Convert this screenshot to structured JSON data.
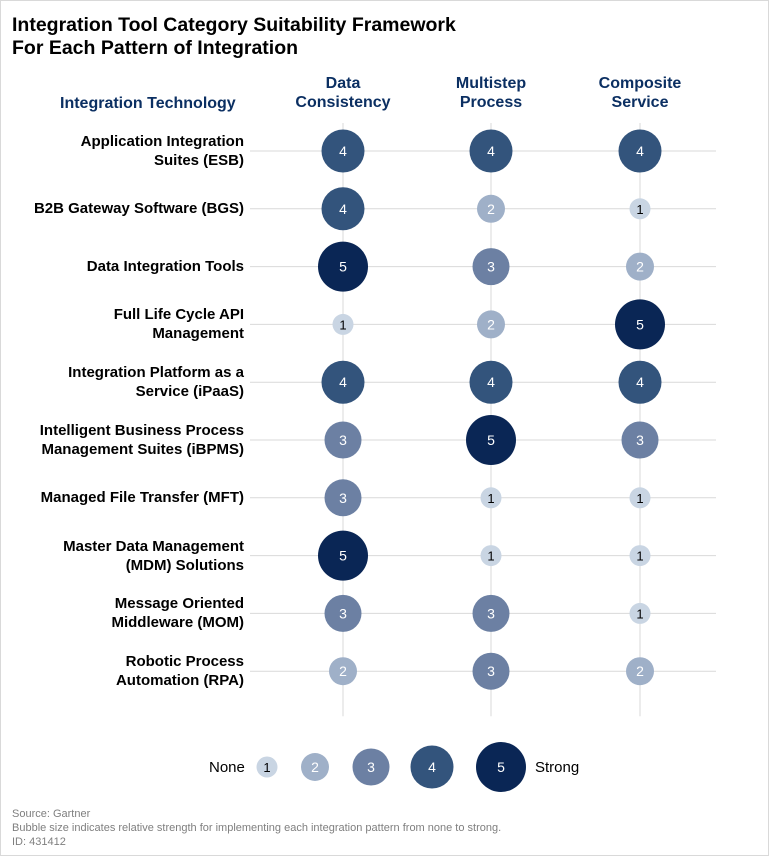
{
  "chart_data": {
    "type": "bubble-matrix",
    "title": "Integration Tool Category Suitability Framework\nFor Each Pattern of Integration",
    "row_header": "Integration Technology",
    "columns": [
      "Data\nConsistency",
      "Multistep\nProcess",
      "Composite\nService"
    ],
    "rows": [
      {
        "label": "Application Integration\nSuites (ESB)",
        "values": [
          4,
          4,
          4
        ]
      },
      {
        "label": "B2B Gateway Software (BGS)",
        "values": [
          4,
          2,
          1
        ]
      },
      {
        "label": "Data Integration Tools",
        "values": [
          5,
          3,
          2
        ]
      },
      {
        "label": "Full Life Cycle API\nManagement",
        "values": [
          1,
          2,
          5
        ]
      },
      {
        "label": "Integration Platform as a\nService (iPaaS)",
        "values": [
          4,
          4,
          4
        ]
      },
      {
        "label": "Intelligent Business Process\nManagement Suites (iBPMS)",
        "values": [
          3,
          5,
          3
        ]
      },
      {
        "label": "Managed File Transfer (MFT)",
        "values": [
          3,
          1,
          1
        ]
      },
      {
        "label": "Master Data Management\n(MDM) Solutions",
        "values": [
          5,
          1,
          1
        ]
      },
      {
        "label": "Message Oriented\nMiddleware (MOM)",
        "values": [
          3,
          3,
          1
        ]
      },
      {
        "label": "Robotic Process\nAutomation (RPA)",
        "values": [
          2,
          3,
          2
        ]
      }
    ],
    "scale": [
      1,
      2,
      3,
      4,
      5
    ],
    "legend": {
      "low_label": "None",
      "high_label": "Strong"
    },
    "colors": {
      "1": "#c9d5e3",
      "2": "#9fb0c8",
      "3": "#6c80a3",
      "4": "#33547c",
      "5": "#0a2655"
    }
  },
  "footer": {
    "source": "Source: Gartner",
    "note": "Bubble size indicates relative strength for implementing each integration pattern from none to strong.",
    "id": "ID: 431412"
  }
}
